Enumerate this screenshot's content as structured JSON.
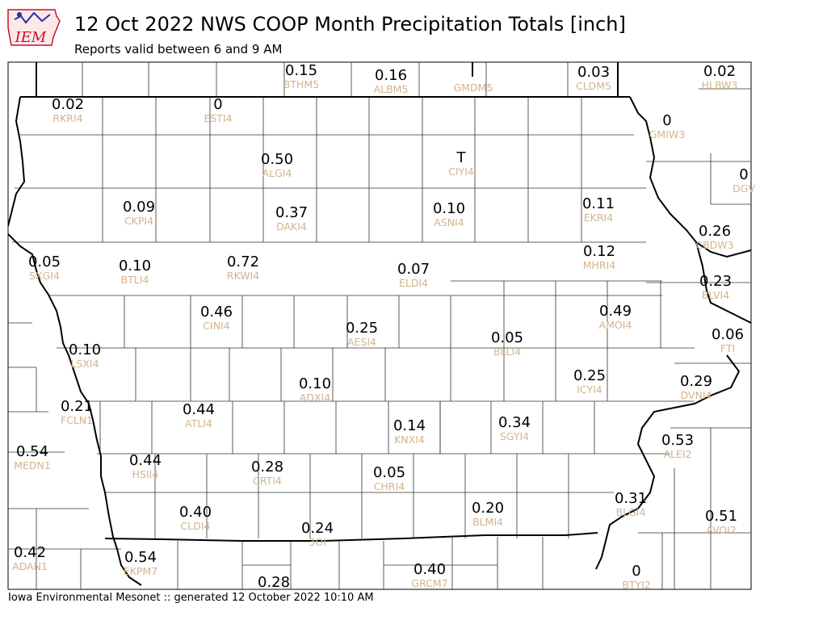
{
  "header": {
    "title": "12 Oct 2022 NWS COOP Month Precipitation Totals [inch]",
    "subtitle": "Reports valid between 6 and 9 AM",
    "logo_text": "IEM"
  },
  "footer": "Iowa Environmental Mesonet :: generated 12 October 2022 10:10 AM",
  "colors": {
    "value": "#000000",
    "station_id": "#d2b48c",
    "logo_red": "#c8102e",
    "logo_blue": "#2233aa"
  },
  "stations": [
    {
      "id": "BTHM5",
      "value": "0.15"
    },
    {
      "id": "ALBM5",
      "value": "0.16"
    },
    {
      "id": "GMDM5",
      "value": ""
    },
    {
      "id": "CLDM5",
      "value": "0.03"
    },
    {
      "id": "HLBW3",
      "value": "0.02"
    },
    {
      "id": "RKRI4",
      "value": "0.02"
    },
    {
      "id": "ESTI4",
      "value": "0"
    },
    {
      "id": "GMIW3",
      "value": "0"
    },
    {
      "id": "ALGI4",
      "value": "0.50"
    },
    {
      "id": "CIYI4",
      "value": "T"
    },
    {
      "id": "DGV",
      "value": "0"
    },
    {
      "id": "CKPI4",
      "value": "0.09"
    },
    {
      "id": "DAKI4",
      "value": "0.37"
    },
    {
      "id": "ASNI4",
      "value": "0.10"
    },
    {
      "id": "EKRI4",
      "value": "0.11"
    },
    {
      "id": "CBDW3",
      "value": "0.26"
    },
    {
      "id": "SXGI4",
      "value": "0.05"
    },
    {
      "id": "BTLI4",
      "value": "0.10"
    },
    {
      "id": "RKWI4",
      "value": "0.72"
    },
    {
      "id": "ELDI4",
      "value": "0.07"
    },
    {
      "id": "MHRI4",
      "value": "0.12"
    },
    {
      "id": "BLVI4",
      "value": "0.23"
    },
    {
      "id": "CINI4",
      "value": "0.46"
    },
    {
      "id": "AMOI4",
      "value": "0.49"
    },
    {
      "id": "AESI4",
      "value": "0.25"
    },
    {
      "id": "BLLI4",
      "value": "0.05"
    },
    {
      "id": "FTI",
      "value": "0.06"
    },
    {
      "id": "LSXI4",
      "value": "0.10"
    },
    {
      "id": "ICYI4",
      "value": "0.25"
    },
    {
      "id": "ADXI4",
      "value": "0.10"
    },
    {
      "id": "DVNI4",
      "value": "0.29"
    },
    {
      "id": "FCLN1",
      "value": "0.21"
    },
    {
      "id": "ATLI4",
      "value": "0.44"
    },
    {
      "id": "KNXI4",
      "value": "0.14"
    },
    {
      "id": "SGYI4",
      "value": "0.34"
    },
    {
      "id": "ALEI2",
      "value": "0.53"
    },
    {
      "id": "MEDN1",
      "value": "0.54"
    },
    {
      "id": "HSII4",
      "value": "0.44"
    },
    {
      "id": "CRTI4",
      "value": "0.28"
    },
    {
      "id": "CHRI4",
      "value": "0.05"
    },
    {
      "id": "BLMI4",
      "value": "0.20"
    },
    {
      "id": "BLGI4",
      "value": "0.31"
    },
    {
      "id": "CLDI4",
      "value": "0.40"
    },
    {
      "id": "AVOI2",
      "value": "0.51"
    },
    {
      "id": "3OI",
      "value": "0.24"
    },
    {
      "id": "ADAN1",
      "value": "0.42"
    },
    {
      "id": "EKPM7",
      "value": "0.54"
    },
    {
      "id": "GRCM7",
      "value": "0.40"
    },
    {
      "id": "BTYI2",
      "value": "0"
    },
    {
      "id": "",
      "value": "0.28"
    }
  ]
}
